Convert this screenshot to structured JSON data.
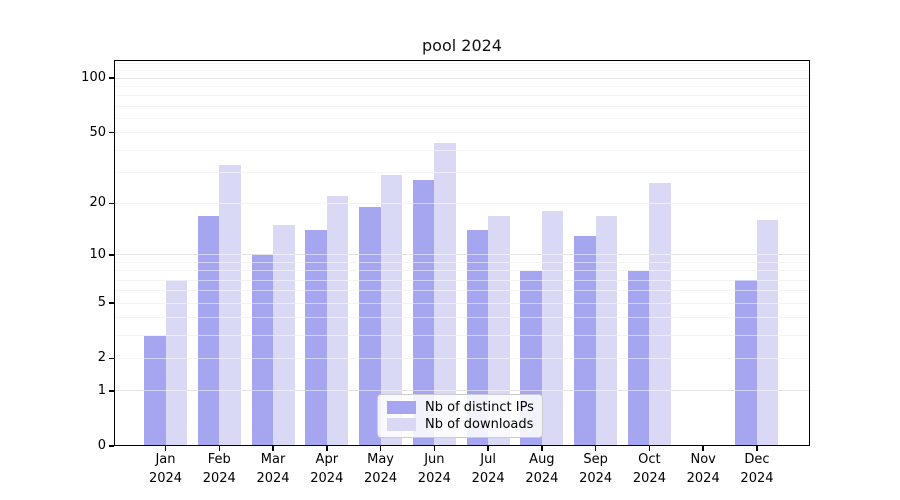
{
  "figure": {
    "title": "pool 2024"
  },
  "legend": {
    "items": [
      {
        "label": "Nb of distinct IPs",
        "color": "#a5a5f0"
      },
      {
        "label": "Nb of downloads",
        "color": "#d9d9f6"
      }
    ]
  },
  "chart_data": {
    "type": "bar",
    "title": "pool 2024",
    "categories": [
      "Jan 2024",
      "Feb 2024",
      "Mar 2024",
      "Apr 2024",
      "May 2024",
      "Jun 2024",
      "Jul 2024",
      "Aug 2024",
      "Sep 2024",
      "Oct 2024",
      "Nov 2024",
      "Dec 2024"
    ],
    "series": [
      {
        "name": "Nb of distinct IPs",
        "color": "#a5a5f0",
        "values": [
          3,
          17,
          10,
          14,
          19,
          27,
          14,
          8,
          13,
          8,
          0,
          7
        ]
      },
      {
        "name": "Nb of downloads",
        "color": "#d9d9f6",
        "values": [
          7,
          33,
          15,
          22,
          29,
          44,
          17,
          18,
          17,
          26,
          0,
          16
        ]
      }
    ],
    "xlabel": "",
    "ylabel": "",
    "yscale": "log1p",
    "yticks": [
      0,
      1,
      2,
      5,
      10,
      20,
      50,
      100
    ],
    "ylim": [
      0,
      126
    ],
    "grid": true,
    "grid_major": [
      1,
      10,
      100
    ],
    "grid_minor": [
      2,
      3,
      4,
      5,
      6,
      7,
      8,
      9,
      20,
      30,
      40,
      50,
      60,
      70,
      80,
      90,
      110,
      120
    ],
    "legend_position": "lower-center-inside",
    "colors": {
      "major_grid": "#c8c8c8",
      "minor_grid": "#e9e9e9",
      "spine": "#000000",
      "text": "#111111"
    }
  }
}
